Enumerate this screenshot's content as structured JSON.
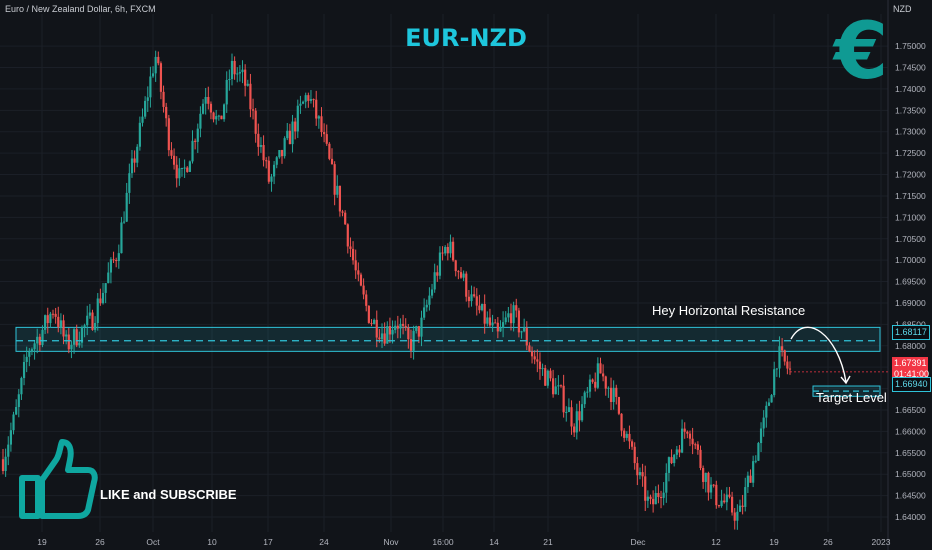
{
  "header": {
    "symbol": "Euro / New Zealand Dollar, 6h, FXCM",
    "currency": "NZD"
  },
  "title": "EUR-NZD",
  "euro_icon": {
    "glyph": "€",
    "color": "#0f9a93"
  },
  "annotations": {
    "resistance_label": "Hey Horizontal Resistance",
    "target_label": "Target Level",
    "cta": "LIKE and SUBSCRIBE"
  },
  "price_tags": {
    "resistance": "1.68117",
    "target": "1.66940",
    "current_price": "1.67391",
    "countdown": "01:41:00"
  },
  "colors": {
    "up": "#26a69a",
    "down": "#ef5350",
    "accent": "#1ec6dc",
    "zone": "#2fc3d9"
  },
  "chart_data": {
    "type": "candlestick",
    "title": "EUR-NZD",
    "ylim": [
      1.6365,
      1.7575
    ],
    "y_ticks": [
      "1.75000",
      "1.74500",
      "1.74000",
      "1.73500",
      "1.73000",
      "1.72500",
      "1.72000",
      "1.71500",
      "1.71000",
      "1.70500",
      "1.70000",
      "1.69500",
      "1.69000",
      "1.68500",
      "1.68000",
      "1.67500",
      "1.67000",
      "1.66500",
      "1.66000",
      "1.65500",
      "1.65000",
      "1.64500",
      "1.64000"
    ],
    "x_ticks": [
      "19",
      "26",
      "Oct",
      "10",
      "17",
      "24",
      "Nov",
      "16:00",
      "14",
      "21",
      "Dec",
      "12",
      "19",
      "26",
      "2023"
    ],
    "close_path": [
      1.6535,
      1.664,
      1.679,
      1.683,
      1.689,
      1.68,
      1.683,
      1.686,
      1.694,
      1.702,
      1.719,
      1.733,
      1.748,
      1.729,
      1.718,
      1.728,
      1.74,
      1.731,
      1.745,
      1.742,
      1.73,
      1.718,
      1.725,
      1.732,
      1.739,
      1.731,
      1.719,
      1.708,
      1.694,
      1.686,
      1.683,
      1.686,
      1.68,
      1.685,
      1.696,
      1.704,
      1.697,
      1.69,
      1.686,
      1.682,
      1.688,
      1.683,
      1.676,
      1.672,
      1.668,
      1.662,
      1.668,
      1.674,
      1.669,
      1.66,
      1.65,
      1.642,
      1.648,
      1.656,
      1.662,
      1.652,
      1.645,
      1.643,
      1.64,
      1.652,
      1.662,
      1.678,
      1.674
    ],
    "resistance_zone": [
      1.6787,
      1.6843
    ],
    "resistance_level": 1.68117,
    "target_zone": [
      1.6682,
      1.6706
    ],
    "target_level": 1.6694,
    "current_price": 1.67391
  }
}
